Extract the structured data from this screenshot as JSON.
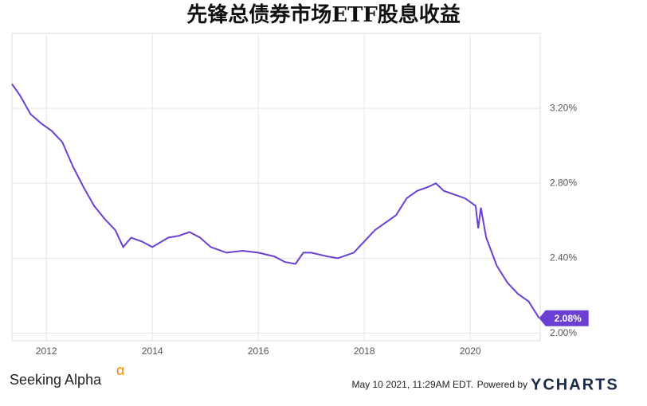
{
  "chart_data": {
    "type": "line",
    "title": "先锋总债券市场ETF股息收益",
    "x": [
      2011.35,
      2011.5,
      2011.7,
      2011.9,
      2012.1,
      2012.3,
      2012.5,
      2012.7,
      2012.9,
      2013.1,
      2013.3,
      2013.45,
      2013.6,
      2013.8,
      2014.0,
      2014.3,
      2014.5,
      2014.7,
      2014.9,
      2015.1,
      2015.4,
      2015.7,
      2016.0,
      2016.3,
      2016.5,
      2016.7,
      2016.85,
      2017.0,
      2017.3,
      2017.5,
      2017.8,
      2018.0,
      2018.2,
      2018.4,
      2018.6,
      2018.8,
      2019.0,
      2019.2,
      2019.35,
      2019.5,
      2019.7,
      2019.9,
      2020.1,
      2020.15,
      2020.2,
      2020.3,
      2020.5,
      2020.7,
      2020.9,
      2021.1,
      2021.3
    ],
    "values": [
      3.33,
      3.27,
      3.17,
      3.12,
      3.08,
      3.02,
      2.89,
      2.78,
      2.68,
      2.61,
      2.55,
      2.46,
      2.51,
      2.49,
      2.46,
      2.51,
      2.52,
      2.54,
      2.51,
      2.46,
      2.43,
      2.44,
      2.43,
      2.41,
      2.38,
      2.37,
      2.43,
      2.43,
      2.41,
      2.4,
      2.43,
      2.49,
      2.55,
      2.59,
      2.63,
      2.72,
      2.76,
      2.78,
      2.8,
      2.76,
      2.74,
      2.72,
      2.68,
      2.56,
      2.67,
      2.51,
      2.36,
      2.27,
      2.21,
      2.17,
      2.08
    ],
    "value_labels": [
      null,
      null,
      null,
      null,
      null,
      null,
      null,
      null,
      null,
      null,
      null,
      null,
      null,
      null,
      null,
      null,
      null,
      null,
      null,
      null,
      null,
      null,
      null,
      null,
      null,
      null,
      null,
      null,
      null,
      null,
      null,
      null,
      null,
      null,
      null,
      null,
      null,
      null,
      null,
      null,
      null,
      null,
      null,
      null,
      null,
      null,
      null,
      null,
      null,
      null,
      "2.08%"
    ],
    "color": "#6b3fd3",
    "xlim": [
      2011.35,
      2021.32
    ],
    "xticks": [
      2012,
      2014,
      2016,
      2018,
      2020
    ],
    "ylim": [
      1.96,
      3.6
    ],
    "yticks": [
      {
        "value": 2.0,
        "label": "2.00%"
      },
      {
        "value": 2.4,
        "label": "2.40%"
      },
      {
        "value": 2.8,
        "label": "2.80%"
      },
      {
        "value": 3.2,
        "label": "3.20%"
      }
    ],
    "grid": true,
    "source": "Seeking Alpha",
    "source_mark": "α",
    "timestamp": "May 10 2021, 11:29AM EDT.",
    "powered_by": "Powered by",
    "brand": "YCHARTS"
  }
}
